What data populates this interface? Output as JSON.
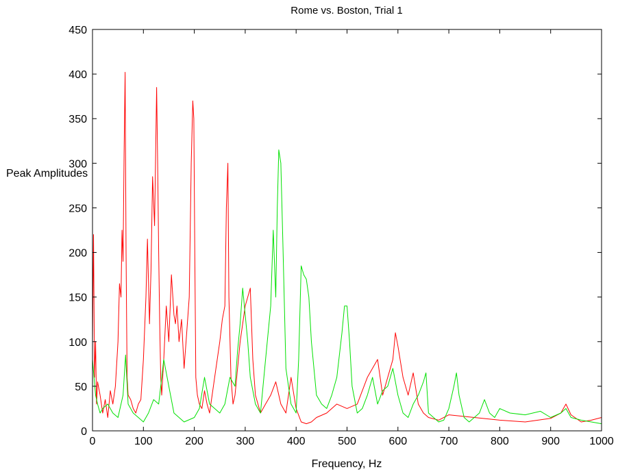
{
  "chart_data": {
    "type": "line",
    "title": "Rome vs. Boston, Trial 1",
    "xlabel": "Frequency, Hz",
    "ylabel": "Peak Amplitudes",
    "xlim": [
      0,
      1000
    ],
    "ylim": [
      0,
      450
    ],
    "xticks": [
      "0",
      "100",
      "200",
      "300",
      "400",
      "500",
      "600",
      "700",
      "800",
      "900",
      "1000"
    ],
    "yticks": [
      "0",
      "50",
      "100",
      "150",
      "200",
      "250",
      "300",
      "350",
      "400",
      "450"
    ],
    "grid": false,
    "legend": "none",
    "series": [
      {
        "color": "#ff0000",
        "x": [
          0,
          2,
          4,
          6,
          8,
          10,
          15,
          20,
          25,
          30,
          35,
          40,
          45,
          50,
          53,
          56,
          58,
          60,
          62,
          64,
          66,
          68,
          70,
          75,
          80,
          85,
          90,
          95,
          100,
          105,
          108,
          112,
          115,
          118,
          122,
          126,
          128,
          130,
          132,
          134,
          136,
          140,
          145,
          150,
          155,
          160,
          163,
          166,
          170,
          175,
          180,
          185,
          190,
          194,
          197,
          199,
          201,
          203,
          206,
          210,
          215,
          220,
          225,
          230,
          240,
          250,
          255,
          260,
          263,
          266,
          268,
          272,
          276,
          280,
          290,
          300,
          310,
          315,
          320,
          330,
          340,
          350,
          360,
          370,
          380,
          390,
          400,
          410,
          420,
          430,
          440,
          460,
          480,
          500,
          520,
          540,
          560,
          570,
          580,
          590,
          595,
          600,
          610,
          620,
          630,
          640,
          650,
          660,
          680,
          700,
          750,
          800,
          850,
          900,
          920,
          930,
          940,
          960,
          980,
          1000
        ],
        "values": [
          100,
          220,
          60,
          100,
          30,
          55,
          40,
          20,
          35,
          15,
          45,
          30,
          50,
          100,
          165,
          150,
          225,
          190,
          310,
          402,
          200,
          60,
          40,
          35,
          25,
          20,
          30,
          35,
          80,
          150,
          215,
          120,
          180,
          285,
          230,
          385,
          300,
          200,
          120,
          60,
          40,
          80,
          140,
          100,
          175,
          130,
          120,
          140,
          100,
          125,
          70,
          110,
          150,
          300,
          370,
          350,
          200,
          60,
          40,
          30,
          25,
          45,
          30,
          20,
          60,
          100,
          125,
          140,
          250,
          300,
          150,
          60,
          30,
          40,
          100,
          140,
          160,
          80,
          40,
          20,
          30,
          40,
          55,
          30,
          20,
          60,
          25,
          10,
          8,
          10,
          15,
          20,
          30,
          25,
          30,
          60,
          80,
          40,
          60,
          80,
          110,
          95,
          60,
          40,
          65,
          30,
          20,
          15,
          12,
          18,
          15,
          12,
          10,
          14,
          20,
          30,
          18,
          10,
          12,
          15
        ]
      },
      {
        "color": "#00e000",
        "x": [
          0,
          3,
          6,
          10,
          15,
          20,
          30,
          40,
          50,
          60,
          65,
          70,
          80,
          90,
          100,
          110,
          120,
          130,
          140,
          150,
          160,
          180,
          200,
          210,
          220,
          230,
          250,
          260,
          270,
          280,
          285,
          290,
          295,
          300,
          305,
          310,
          320,
          330,
          340,
          350,
          355,
          360,
          363,
          366,
          370,
          374,
          380,
          390,
          400,
          405,
          410,
          415,
          420,
          425,
          430,
          440,
          450,
          460,
          470,
          480,
          490,
          495,
          500,
          505,
          510,
          520,
          530,
          540,
          550,
          560,
          570,
          580,
          590,
          600,
          610,
          620,
          630,
          640,
          650,
          655,
          660,
          670,
          680,
          690,
          700,
          710,
          715,
          720,
          730,
          740,
          760,
          770,
          780,
          790,
          800,
          820,
          850,
          880,
          900,
          920,
          930,
          940,
          960,
          980,
          1000
        ],
        "values": [
          80,
          60,
          40,
          30,
          20,
          25,
          30,
          20,
          15,
          40,
          85,
          30,
          20,
          15,
          10,
          20,
          35,
          30,
          80,
          50,
          20,
          10,
          15,
          25,
          60,
          30,
          20,
          30,
          60,
          50,
          90,
          120,
          160,
          130,
          100,
          60,
          30,
          20,
          80,
          140,
          225,
          150,
          250,
          315,
          300,
          210,
          70,
          30,
          20,
          80,
          185,
          175,
          170,
          150,
          100,
          40,
          30,
          25,
          40,
          60,
          110,
          140,
          140,
          100,
          50,
          20,
          25,
          40,
          60,
          30,
          45,
          50,
          70,
          40,
          20,
          15,
          30,
          40,
          55,
          65,
          20,
          15,
          10,
          12,
          25,
          50,
          65,
          40,
          15,
          10,
          20,
          35,
          20,
          15,
          25,
          20,
          18,
          22,
          15,
          20,
          25,
          15,
          12,
          10,
          8
        ]
      }
    ]
  }
}
